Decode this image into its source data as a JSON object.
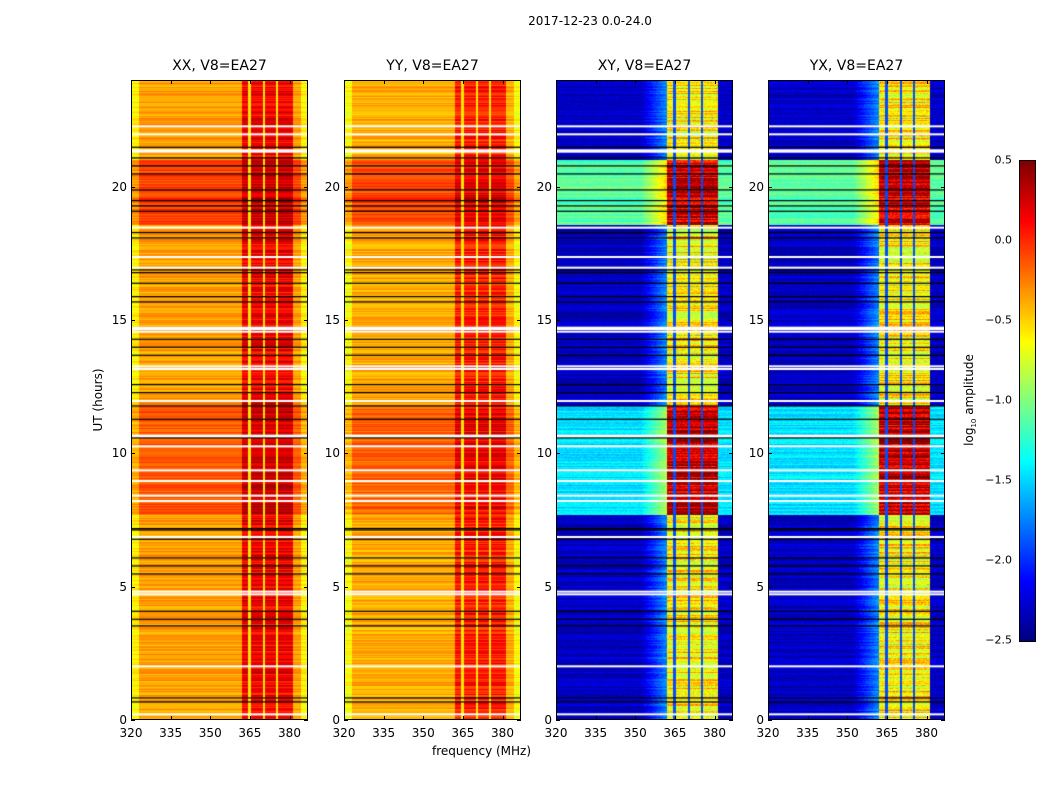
{
  "chart_data": {
    "type": "heatmap",
    "title": "2017-12-23 0.0-24.0",
    "xlabel": "frequency (MHz)",
    "ylabel": "UT (hours)",
    "xlim": [
      320,
      387
    ],
    "ylim": [
      0,
      24
    ],
    "xticks": [
      320,
      335,
      350,
      365,
      380
    ],
    "yticks": [
      0,
      5,
      10,
      15,
      20
    ],
    "colormap": "jet",
    "colorbar": {
      "label_prefix": "log",
      "label_sub": "10",
      "label_suffix": " amplitude",
      "vmin": -2.5,
      "vmax": 0.5,
      "ticks": [
        "0.5",
        "0.0",
        "−0.5",
        "−1.0",
        "−1.5",
        "−2.0",
        "−2.5"
      ],
      "tick_values": [
        0.5,
        0.0,
        -0.5,
        -1.0,
        -1.5,
        -2.0,
        -2.5
      ]
    },
    "panels": [
      {
        "title": "XX, V8=EA27",
        "kind": "parallel",
        "baseline": -0.35,
        "band_level": 0.15
      },
      {
        "title": "YY, V8=EA27",
        "kind": "parallel",
        "baseline": -0.38,
        "band_level": 0.05
      },
      {
        "title": "XY, V8=EA27",
        "kind": "cross",
        "baseline": -2.3,
        "band_level": -0.6
      },
      {
        "title": "YX, V8=EA27",
        "kind": "cross",
        "baseline": -2.3,
        "band_level": -0.6
      }
    ],
    "signal_band_mhz": [
      362,
      381
    ],
    "band_gaps_mhz": [
      364.6,
      370.2,
      375.0
    ],
    "elevated_ut_hours": [
      [
        18.6,
        21.0
      ],
      [
        10.0,
        11.8
      ],
      [
        7.7,
        10.0
      ]
    ],
    "flagged_ut_hours_white": [
      0.25,
      2.05,
      4.75,
      4.85,
      6.9,
      8.25,
      8.45,
      9.0,
      9.4,
      10.3,
      10.65,
      10.7,
      12.0,
      13.2,
      13.3,
      14.6,
      14.7,
      14.75,
      17.0,
      17.4,
      18.5,
      21.35,
      21.4,
      22.0,
      22.3
    ],
    "flagged_ut_hours_black": [
      0.7,
      0.85,
      3.55,
      3.8,
      4.1,
      5.5,
      5.8,
      6.1,
      6.8,
      7.15,
      7.2,
      10.6,
      11.3,
      11.8,
      12.3,
      12.6,
      13.7,
      14.0,
      14.3,
      15.7,
      15.9,
      16.4,
      16.8,
      16.9,
      18.1,
      18.3,
      19.1,
      19.3,
      19.5,
      19.9,
      20.5,
      20.8,
      21.1,
      21.5
    ]
  }
}
